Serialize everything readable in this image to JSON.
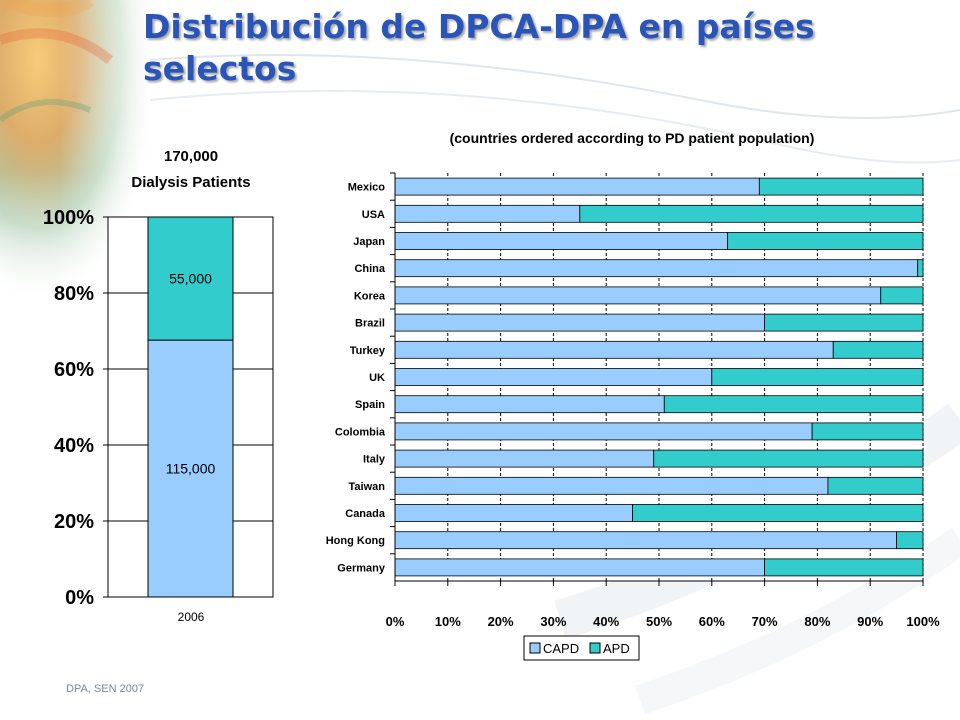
{
  "slide": {
    "title": "Distribución de DPCA-DPA en países selectos",
    "footer": "DPA, SEN 2007"
  },
  "colors": {
    "capd": "#99ccff",
    "apd": "#33cccc",
    "title": "#2a55b8"
  },
  "chart_data": [
    {
      "type": "bar",
      "stacked": true,
      "orientation": "vertical",
      "title": "170,000 Dialysis Patients",
      "title_lines": [
        "170,000",
        "Dialysis Patients"
      ],
      "categories": [
        "2006"
      ],
      "series": [
        {
          "name": "CAPD",
          "values": [
            0.676
          ],
          "label": "115,000"
        },
        {
          "name": "APD",
          "values": [
            0.324
          ],
          "label": "55,000"
        }
      ],
      "ylim": [
        0,
        1
      ],
      "yticks": [
        "0%",
        "20%",
        "40%",
        "60%",
        "80%",
        "100%"
      ],
      "grid": true,
      "xlabel": "",
      "ylabel": ""
    },
    {
      "type": "bar",
      "stacked": true,
      "orientation": "horizontal",
      "title": "(countries ordered according to PD patient population)",
      "title_parts": [
        "(countries ordered according to ",
        "PD",
        " patient population)"
      ],
      "categories": [
        "Mexico",
        "USA",
        "Japan",
        "China",
        "Korea",
        "Brazil",
        "Turkey",
        "UK",
        "Spain",
        "Colombia",
        "Italy",
        "Taiwan",
        "Canada",
        "Hong Kong",
        "Germany"
      ],
      "series": [
        {
          "name": "CAPD",
          "values": [
            69,
            35,
            63,
            99,
            92,
            70,
            83,
            60,
            51,
            79,
            49,
            82,
            45,
            95,
            70
          ]
        },
        {
          "name": "APD",
          "values": [
            31,
            65,
            37,
            1,
            8,
            30,
            17,
            40,
            49,
            21,
            51,
            18,
            55,
            5,
            30
          ]
        }
      ],
      "xlim": [
        0,
        100
      ],
      "xticks": [
        "0%",
        "10%",
        "20%",
        "30%",
        "40%",
        "50%",
        "60%",
        "70%",
        "80%",
        "90%",
        "100%"
      ],
      "grid": true,
      "legend": {
        "position": "bottom",
        "entries": [
          "CAPD",
          "APD"
        ]
      }
    }
  ]
}
